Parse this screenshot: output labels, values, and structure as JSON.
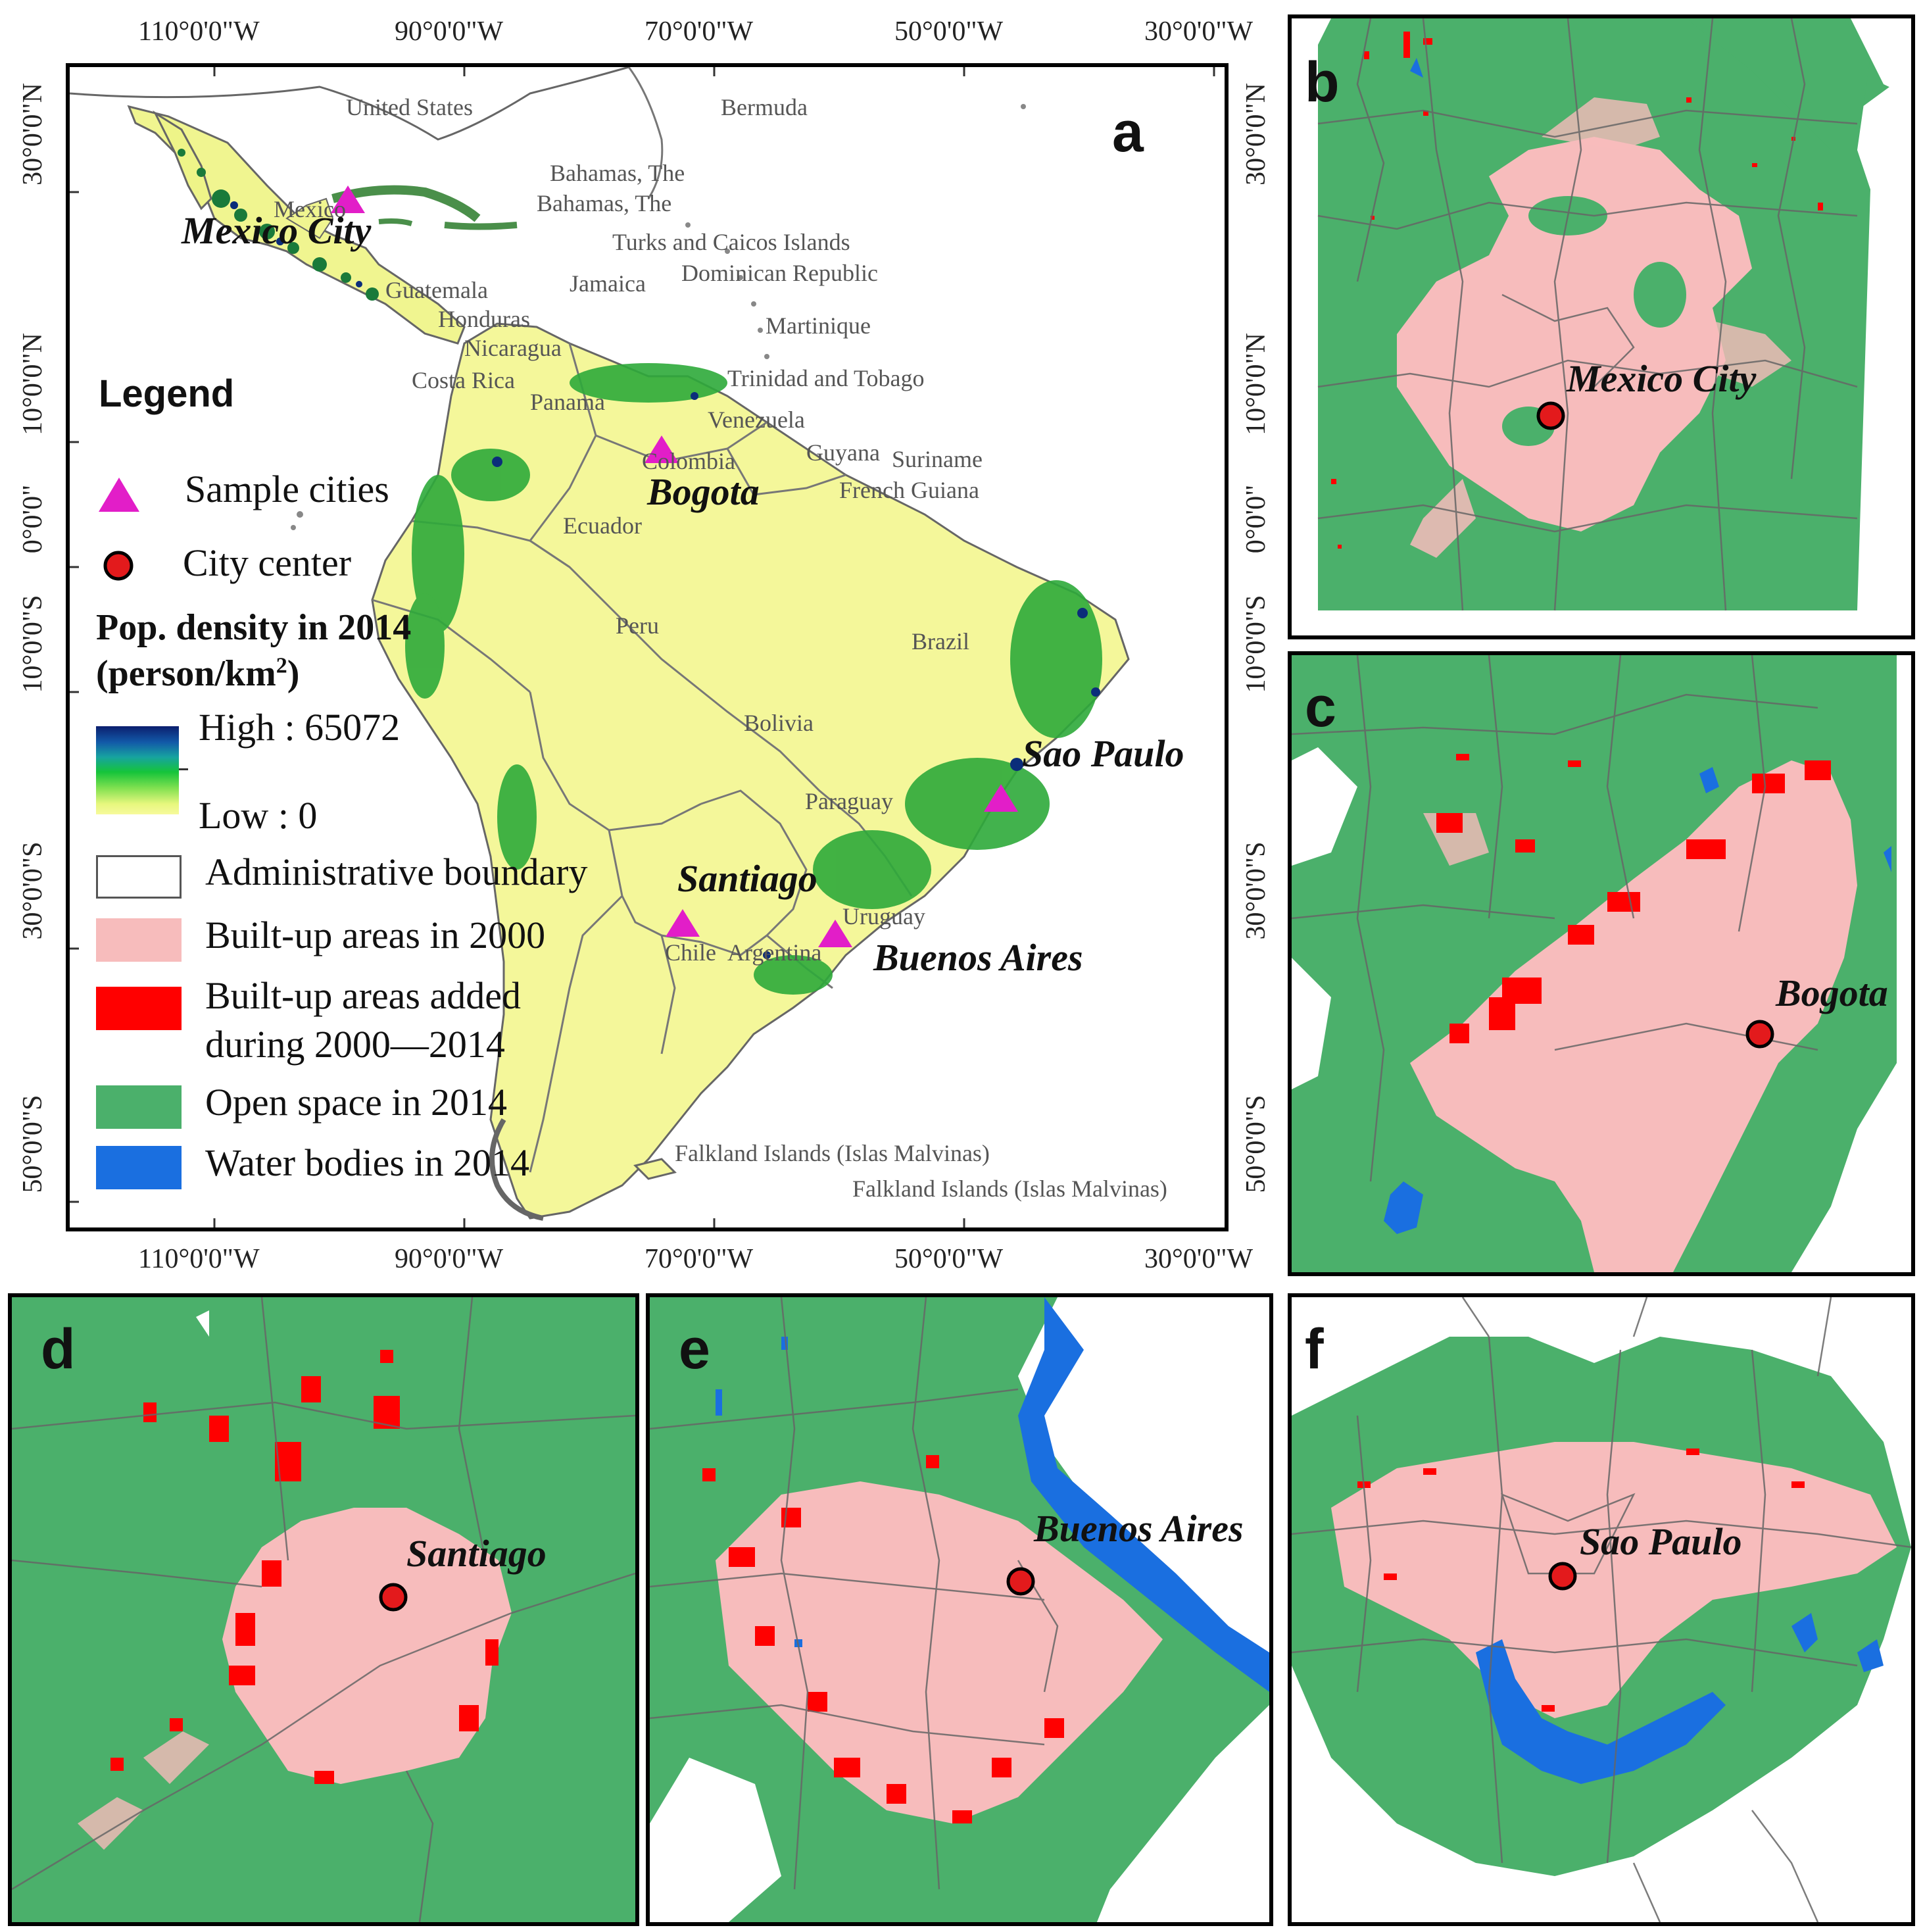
{
  "panel_a": {
    "letter": "a",
    "top_ticks": [
      "110°0'0\"W",
      "90°0'0\"W",
      "70°0'0\"W",
      "50°0'0\"W",
      "30°0'0\"W"
    ],
    "bottom_ticks": [
      "110°0'0\"W",
      "90°0'0\"W",
      "70°0'0\"W",
      "50°0'0\"W",
      "30°0'0\"W"
    ],
    "left_ticks": [
      "30°0'0\"N",
      "10°0'0\"N",
      "0°0'0\"",
      "10°0'0\"S",
      "30°0'0\"S",
      "50°0'0\"S"
    ],
    "right_ticks": [
      "30°0'0\"N",
      "10°0'0\"N",
      "0°0'0\"",
      "10°0'0\"S",
      "30°0'0\"S",
      "50°0'0\"S"
    ],
    "countries": [
      "United States",
      "Bermuda",
      "Bahamas, The",
      "Bahamas, The",
      "Mexico",
      "Turks and Caicos Islands",
      "Dominican Republic",
      "Jamaica",
      "Guatemala",
      "Honduras",
      "Martinique",
      "Nicaragua",
      "Costa Rica",
      "Panama",
      "Trinidad and Tobago",
      "Venezuela",
      "Colombia",
      "Guyana",
      "Suriname",
      "French Guiana",
      "Ecuador",
      "Peru",
      "Brazil",
      "Bolivia",
      "Paraguay",
      "Uruguay",
      "Chile",
      "Argentina",
      "Falkland Islands (Islas Malvinas)",
      "Falkland Islands (Islas Malvinas)"
    ],
    "cities": [
      "Mexico City",
      "Bogota",
      "Sao Paulo",
      "Santiago",
      "Buenos Aires"
    ]
  },
  "legend": {
    "title": "Legend",
    "sample_cities": "Sample cities",
    "city_center": "City center",
    "pop_title_line1": "Pop. density in 2014",
    "pop_title_line2_pre": "(person/km",
    "pop_title_sup": "2",
    "pop_title_line2_post": ")",
    "high": "High : 65072",
    "low": "Low : 0",
    "admin": "Administrative boundary",
    "builtup_2000": "Built-up areas in 2000",
    "builtup_added_1": "Built-up areas added",
    "builtup_added_2": "during 2000—2014",
    "open_space": "Open space in 2014",
    "water": "Water bodies in 2014"
  },
  "colors": {
    "open_space": "#4bb06b",
    "builtup_2000": "#f7bcbc",
    "builtup_added": "#ff0000",
    "water": "#1a6fe0",
    "land": "#f4f79a",
    "marker_triangle": "#e21ec8",
    "marker_center": "#e31a1c"
  },
  "panels": {
    "b": {
      "letter": "b",
      "city": "Mexico City"
    },
    "c": {
      "letter": "c",
      "city": "Bogota"
    },
    "d": {
      "letter": "d",
      "city": "Santiago"
    },
    "e": {
      "letter": "e",
      "city": "Buenos Aires"
    },
    "f": {
      "letter": "f",
      "city": "Sao Paulo"
    }
  }
}
